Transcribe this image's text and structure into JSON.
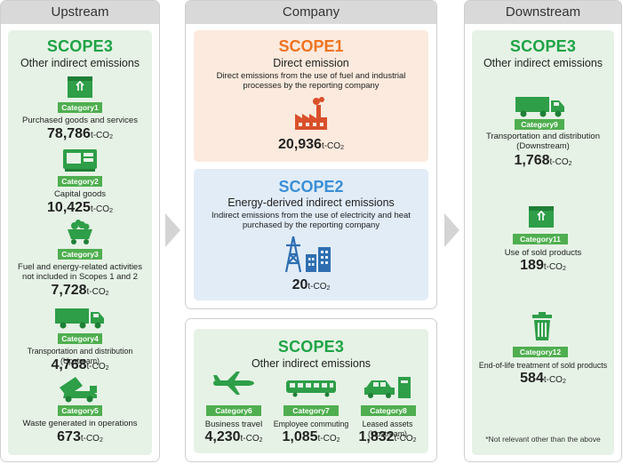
{
  "columns": {
    "upstream": "Upstream",
    "company": "Company",
    "downstream": "Downstream"
  },
  "colors": {
    "green": "#1fa346",
    "badge_green": "#4fae4f",
    "orange": "#f07320",
    "blue": "#3a8fd6",
    "red_icon": "#d9502b"
  },
  "upstream": {
    "scope": "SCOPE3",
    "subtitle": "Other indirect emissions",
    "unit": "t-CO",
    "unit_sub": "2",
    "items": [
      {
        "badge": "Category1",
        "label": "Purchased goods and services",
        "value": "78,786",
        "icon": "box-icon"
      },
      {
        "badge": "Category2",
        "label": "Capital goods",
        "value": "10,425",
        "icon": "machine-icon"
      },
      {
        "badge": "Category3",
        "label_line1": "Fuel and energy-related activities",
        "label_line2": "not included in Scopes 1 and 2",
        "value": "7,728",
        "icon": "coal-cart-icon"
      },
      {
        "badge": "Category4",
        "label": "Transportation and distribution (Upstream)",
        "value": "4,768",
        "icon": "truck-icon"
      },
      {
        "badge": "Category5",
        "label": "Waste generated in operations",
        "value": "673",
        "icon": "garbage-truck-icon"
      }
    ]
  },
  "company": {
    "unit": "t-CO",
    "unit_sub": "2",
    "scope1": {
      "scope": "SCOPE1",
      "subtitle": "Direct emission",
      "desc_line1": "Direct emissions from the use of fuel and industrial",
      "desc_line2": "processes by the reporting company",
      "value": "20,936",
      "icon": "factory-icon"
    },
    "scope2": {
      "scope": "SCOPE2",
      "subtitle": "Energy-derived indirect emissions",
      "desc_line1": "Indirect emissions from the use of electricity and heat",
      "desc_line2": "purchased by the reporting company",
      "value": "20",
      "icon": "power-tower-icon"
    },
    "scope3": {
      "scope": "SCOPE3",
      "subtitle": "Other indirect emissions",
      "items": [
        {
          "badge": "Category6",
          "label": "Business travel",
          "value": "4,230",
          "icon": "airplane-icon"
        },
        {
          "badge": "Category7",
          "label": "Employee commuting",
          "value": "1,085",
          "icon": "train-icon"
        },
        {
          "badge": "Category8",
          "label": "Leased assets (Upstream)",
          "value": "1,832",
          "icon": "car-printer-icon"
        }
      ]
    }
  },
  "downstream": {
    "scope": "SCOPE3",
    "subtitle": "Other indirect emissions",
    "unit": "t-CO",
    "unit_sub": "2",
    "items": [
      {
        "badge": "Category9",
        "label_line1": "Transportation and distribution",
        "label_line2": "(Downstream)",
        "value": "1,768",
        "icon": "truck-icon"
      },
      {
        "badge": "Category11",
        "label": "Use of sold products",
        "value": "189",
        "icon": "box-icon"
      },
      {
        "badge": "Category12",
        "label": "End-of-life treatment of sold products",
        "value": "584",
        "icon": "trash-can-icon"
      }
    ],
    "note": "*Not relevant other than the above"
  }
}
